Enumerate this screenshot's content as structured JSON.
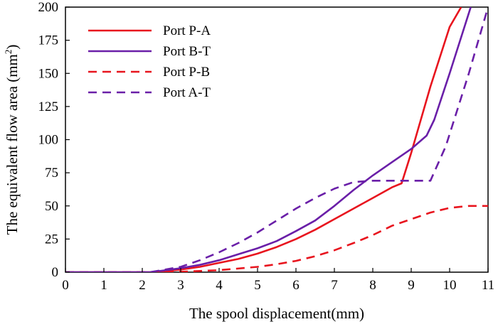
{
  "chart_data": {
    "type": "line",
    "title": "",
    "xlabel": "The spool displacement(mm)",
    "ylabel_main": "The equivalent flow area (mm",
    "ylabel_sup": "2",
    "ylabel_tail": ")",
    "xlim": [
      0,
      11
    ],
    "ylim": [
      0,
      200
    ],
    "x_ticks": [
      0,
      1,
      2,
      3,
      4,
      5,
      6,
      7,
      8,
      9,
      10,
      11
    ],
    "y_ticks": [
      0,
      25,
      50,
      75,
      100,
      125,
      150,
      175,
      200
    ],
    "grid": false,
    "legend_position": "top-left",
    "series": [
      {
        "name": "Port P-A",
        "color": "#e8141e",
        "dash": "solid",
        "x": [
          0,
          2.2,
          2.5,
          3,
          3.5,
          4,
          4.5,
          5,
          5.5,
          6,
          6.5,
          7,
          7.5,
          8,
          8.5,
          8.75,
          9,
          9.5,
          10,
          10.3
        ],
        "y": [
          0,
          0,
          0.5,
          2,
          4,
          7,
          10,
          14,
          19,
          25,
          32,
          40,
          48,
          56,
          64,
          67,
          90,
          140,
          185,
          200
        ]
      },
      {
        "name": "Port B-T",
        "color": "#6a1fa8",
        "dash": "solid",
        "x": [
          0,
          2.2,
          2.5,
          3,
          3.5,
          4,
          4.5,
          5,
          5.5,
          6,
          6.5,
          7,
          7.5,
          8,
          8.5,
          9,
          9.4,
          9.6,
          10,
          10.55
        ],
        "y": [
          0,
          0,
          1,
          3,
          5.5,
          9,
          13.5,
          18,
          23.5,
          31,
          39,
          50,
          62,
          73,
          83,
          93,
          103,
          115,
          150,
          200
        ]
      },
      {
        "name": "Port P-B",
        "color": "#e8141e",
        "dash": "dashed",
        "x": [
          0,
          2.2,
          3,
          4,
          5,
          5.5,
          6,
          6.5,
          7,
          7.5,
          8,
          8.5,
          9,
          9.5,
          10,
          10.5,
          11
        ],
        "y": [
          0,
          0,
          0.3,
          1.5,
          4,
          6,
          8.5,
          12,
          16.5,
          22,
          28,
          35,
          40,
          45,
          48.5,
          50,
          50
        ]
      },
      {
        "name": "Port A-T",
        "color": "#6a1fa8",
        "dash": "dashed",
        "x": [
          0,
          2.2,
          2.5,
          3,
          3.5,
          4,
          4.5,
          5,
          5.5,
          6,
          6.5,
          7,
          7.5,
          8,
          8.5,
          9,
          9.5,
          9.9,
          10.5,
          11
        ],
        "y": [
          0,
          0,
          1.5,
          4,
          9,
          15,
          22,
          30,
          39,
          48,
          56,
          63,
          68,
          69,
          69,
          69,
          69,
          95,
          150,
          200
        ]
      }
    ]
  }
}
